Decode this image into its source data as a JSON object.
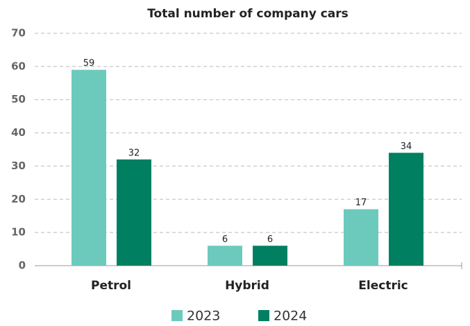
{
  "chart_data": {
    "type": "bar",
    "title": "Total number of company cars",
    "categories": [
      "Petrol",
      "Hybrid",
      "Electric"
    ],
    "series": [
      {
        "name": "2023",
        "color": "#6ccabd",
        "values": [
          59,
          6,
          17
        ]
      },
      {
        "name": "2024",
        "color": "#008060",
        "values": [
          32,
          6,
          34
        ]
      }
    ],
    "ylim": [
      0,
      70
    ],
    "yticks": [
      0,
      10,
      20,
      30,
      40,
      50,
      60,
      70
    ],
    "grid": true,
    "legend": "bottom"
  }
}
